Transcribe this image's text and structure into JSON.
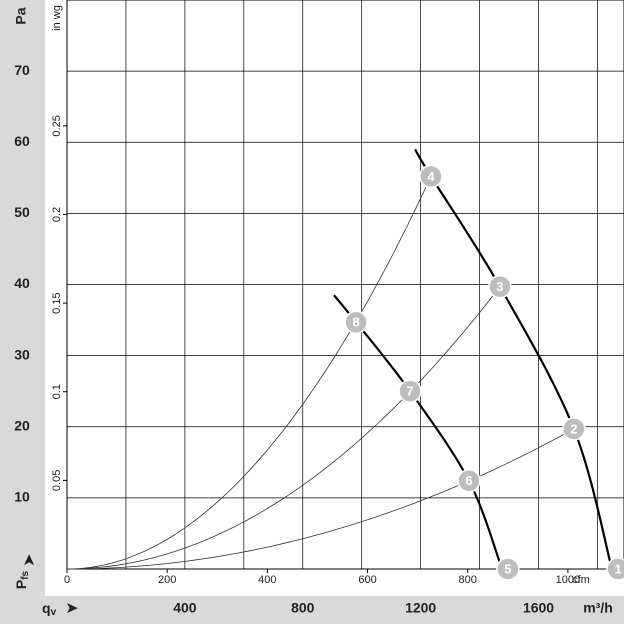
{
  "chart_data": {
    "type": "fan-curve",
    "y_label": "Pa",
    "y2_label": "in wg",
    "x_label": "m³/h",
    "x2_label": "cfm",
    "pressure_symbol": "Pfs",
    "flow_symbol": "qv",
    "xlim": [
      0,
      1890
    ],
    "xticks": [
      400,
      800,
      1200,
      1600
    ],
    "xgrid": [
      200,
      400,
      600,
      800,
      1000,
      1200,
      1400,
      1600,
      1800
    ],
    "x2lim": [
      0,
      1112
    ],
    "x2ticks": [
      0,
      200,
      400,
      600,
      800,
      1000
    ],
    "ylim": [
      0,
      80
    ],
    "yticks": [
      10,
      20,
      30,
      40,
      50,
      60,
      70
    ],
    "y2lim": [
      0,
      0.321
    ],
    "y2ticks": [
      0.05,
      0.1,
      0.15,
      0.2,
      0.25
    ],
    "grid": true,
    "series": [
      {
        "color": "#000000",
        "x": [
          1181,
          1235,
          1469,
          1720,
          1849
        ],
        "values": [
          59,
          55.2,
          39.7,
          19.7,
          0
        ]
      },
      {
        "color": "#000000",
        "x": [
          906,
          981,
          1164,
          1364,
          1476
        ],
        "values": [
          38.5,
          34.7,
          25,
          12.4,
          0
        ]
      }
    ],
    "points": {
      "labels": [
        "1",
        "2",
        "3",
        "4",
        "5",
        "6",
        "7",
        "8"
      ],
      "x": [
        1870,
        1720,
        1469,
        1235,
        1496,
        1364,
        1164,
        981
      ],
      "values": [
        0,
        19.7,
        39.7,
        55.2,
        0,
        12.4,
        25,
        34.7
      ]
    }
  }
}
